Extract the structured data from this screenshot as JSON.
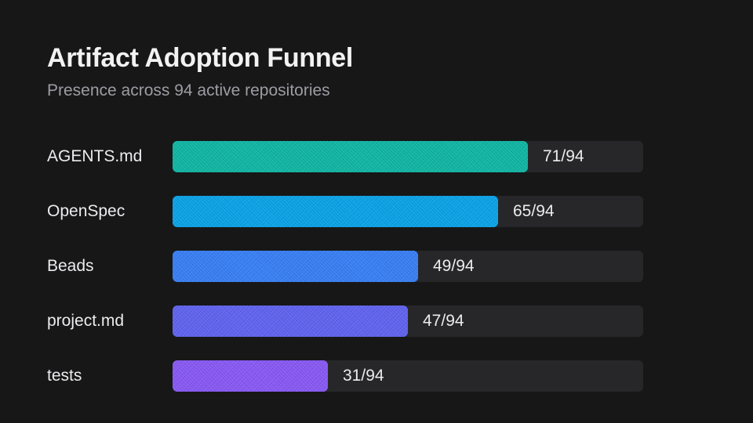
{
  "chart_data": {
    "type": "bar",
    "orientation": "horizontal",
    "title": "Artifact Adoption Funnel",
    "subtitle": "Presence across 94 active repositories",
    "categories": [
      "AGENTS.md",
      "OpenSpec",
      "Beads",
      "project.md",
      "tests"
    ],
    "values": [
      71,
      65,
      49,
      47,
      31
    ],
    "total": 94,
    "value_labels": [
      "71/94",
      "65/94",
      "49/94",
      "47/94",
      "31/94"
    ],
    "xlim": [
      0,
      94
    ],
    "grid": false,
    "legend": "none",
    "colors": [
      "#14b8a6",
      "#0ea5e9",
      "#3b82f6",
      "#6366f1",
      "#8b5cf6"
    ]
  },
  "theme": {
    "background": "#171718",
    "track": "#27272a"
  }
}
